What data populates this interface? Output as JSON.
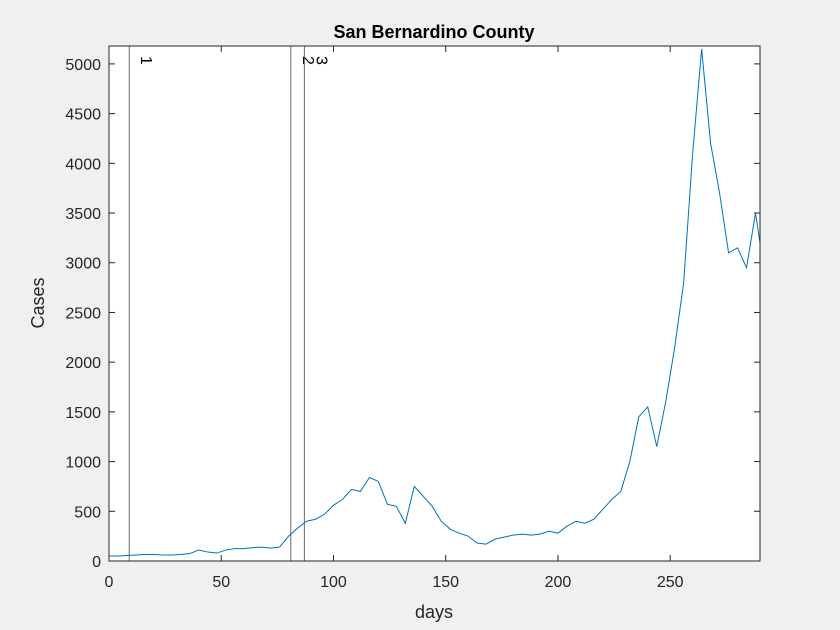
{
  "chart_data": {
    "type": "line",
    "title": "San Bernardino County",
    "xlabel": "days",
    "ylabel": "Cases",
    "x": [
      0,
      4,
      8,
      12,
      16,
      20,
      24,
      28,
      32,
      36,
      40,
      44,
      48,
      52,
      56,
      60,
      64,
      68,
      72,
      76,
      80,
      84,
      88,
      92,
      96,
      100,
      104,
      108,
      112,
      116,
      120,
      124,
      128,
      132,
      136,
      140,
      144,
      148,
      152,
      156,
      160,
      164,
      168,
      172,
      176,
      180,
      184,
      188,
      192,
      196,
      200,
      204,
      208,
      212,
      216,
      220,
      224,
      228,
      232,
      236,
      240,
      244,
      248,
      252,
      256,
      260,
      264,
      268,
      272,
      276,
      280,
      284,
      288,
      290
    ],
    "series": [
      {
        "name": "Cases",
        "color": "#0072bd",
        "values": [
          50,
          50,
          55,
          60,
          65,
          65,
          60,
          60,
          65,
          75,
          110,
          90,
          80,
          110,
          125,
          125,
          135,
          140,
          130,
          140,
          250,
          330,
          400,
          420,
          470,
          560,
          620,
          720,
          700,
          840,
          800,
          570,
          550,
          380,
          750,
          650,
          550,
          400,
          320,
          280,
          250,
          180,
          170,
          220,
          240,
          260,
          270,
          260,
          270,
          300,
          280,
          350,
          400,
          380,
          420,
          520,
          620,
          700,
          1000,
          1450,
          1550,
          1150,
          1600,
          2150,
          2800,
          4100,
          5150,
          4200,
          3700,
          3100,
          3150,
          2950,
          3500,
          3200
        ]
      }
    ],
    "xlim": [
      0,
      290
    ],
    "ylim": [
      0,
      5180
    ],
    "xticks": [
      0,
      50,
      100,
      150,
      200,
      250
    ],
    "yticks": [
      0,
      500,
      1000,
      1500,
      2000,
      2500,
      3000,
      3500,
      4000,
      4500,
      5000
    ],
    "events": [
      {
        "x": 9,
        "label": "1"
      },
      {
        "x": 81,
        "label": "2"
      },
      {
        "x": 87,
        "label": "3"
      }
    ],
    "grid": false
  }
}
